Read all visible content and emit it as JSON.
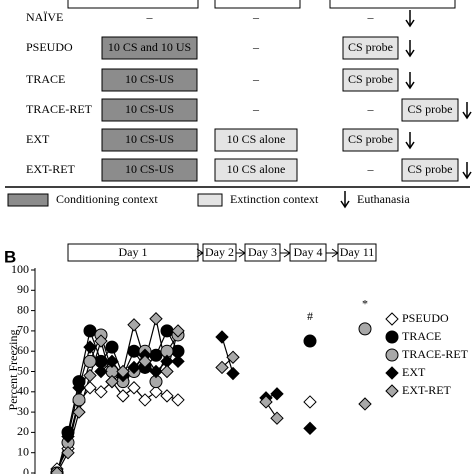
{
  "panel_a": {
    "rows": [
      {
        "group": "NAÏVE",
        "cells": [
          "–",
          "–",
          "–"
        ]
      },
      {
        "group": "PSEUDO",
        "cells": [
          "10 CS and 10 US",
          "–",
          "CS probe"
        ]
      },
      {
        "group": "TRACE",
        "cells": [
          "10 CS-US",
          "–",
          "CS probe"
        ]
      },
      {
        "group": "TRACE-RET",
        "cells": [
          "10 CS-US",
          "–",
          "–",
          "CS probe"
        ]
      },
      {
        "group": "EXT",
        "cells": [
          "10 CS-US",
          "10 CS alone",
          "CS probe"
        ]
      },
      {
        "group": "EXT-RET",
        "cells": [
          "10 CS-US",
          "10 CS alone",
          "–",
          "CS probe"
        ]
      }
    ],
    "legend": [
      "Conditioning context",
      "Extinction context",
      "Euthanasia"
    ]
  },
  "chart_data": {
    "type": "line",
    "panel_label": "B",
    "days": [
      "Day 1",
      "Day 2",
      "Day 3",
      "Day 4",
      "Day 11"
    ],
    "y_label": "Percent Freezing",
    "x": [
      1,
      2,
      3,
      4,
      5,
      6,
      7,
      8,
      9,
      10,
      11,
      12,
      16,
      17,
      20,
      21,
      24,
      29
    ],
    "xlim": [
      -1,
      30
    ],
    "ylim": [
      0,
      100
    ],
    "yticks": [
      0,
      10,
      20,
      30,
      40,
      50,
      60,
      70,
      80,
      90,
      100
    ],
    "series": [
      {
        "name": "PSEUDO",
        "marker": "diamond",
        "color": "#ffffff",
        "values": [
          2,
          12,
          35,
          42,
          40,
          45,
          38,
          42,
          36,
          40,
          38,
          36,
          null,
          null,
          null,
          null,
          35,
          null
        ]
      },
      {
        "name": "TRACE",
        "marker": "circle",
        "color": "#000000",
        "values": [
          0,
          20,
          45,
          70,
          55,
          62,
          48,
          60,
          52,
          58,
          70,
          60,
          null,
          null,
          null,
          null,
          65,
          null
        ]
      },
      {
        "name": "TRACE-RET",
        "marker": "circle",
        "color": "#a8a8a8",
        "values": [
          0,
          15,
          36,
          55,
          68,
          50,
          45,
          50,
          60,
          45,
          60,
          68,
          null,
          null,
          null,
          null,
          null,
          71
        ]
      },
      {
        "name": "EXT",
        "marker": "diamond",
        "color": "#000000",
        "values": [
          0,
          18,
          42,
          62,
          50,
          55,
          48,
          52,
          58,
          50,
          55,
          55,
          67,
          49,
          37,
          39,
          22,
          null
        ]
      },
      {
        "name": "EXT-RET",
        "marker": "diamond",
        "color": "#a8a8a8",
        "values": [
          0,
          10,
          30,
          48,
          65,
          45,
          50,
          73,
          55,
          76,
          50,
          70,
          52,
          57,
          35,
          27,
          null,
          34
        ]
      }
    ],
    "annotations": [
      {
        "text": "#",
        "x": 24
      },
      {
        "text": "*",
        "x": 29
      }
    ]
  }
}
